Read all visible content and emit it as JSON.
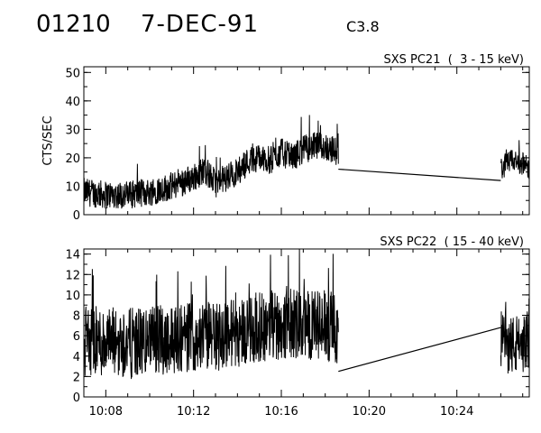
{
  "header": {
    "flare_id": "01210",
    "date": "7-DEC-91",
    "goes_class": "C3.8"
  },
  "chart_data": [
    {
      "type": "line",
      "title": "SXS PC21  (  3 - 15 keV)",
      "xlabel": "",
      "ylabel": "CTS/SEC",
      "xlim": [
        "10:07.0",
        "10:27.3"
      ],
      "ylim": [
        0,
        52
      ],
      "x_ticks": [
        "10:08",
        "10:12",
        "10:16",
        "10:20",
        "10:24"
      ],
      "y_ticks": [
        0,
        10,
        20,
        30,
        40,
        50
      ],
      "series": [
        {
          "data_segments": [
            {
              "x_start_min": 7.0,
              "x_end_min": 18.6,
              "envelope": [
                [
                  7.0,
                  8
                ],
                [
                  8.0,
                  7
                ],
                [
                  9.0,
                  7
                ],
                [
                  10.0,
                  8
                ],
                [
                  11.0,
                  10
                ],
                [
                  12.0,
                  13
                ],
                [
                  12.5,
                  16
                ],
                [
                  13.0,
                  11
                ],
                [
                  13.5,
                  13
                ],
                [
                  14.0,
                  15
                ],
                [
                  14.5,
                  19
                ],
                [
                  15.0,
                  20
                ],
                [
                  15.5,
                  19
                ],
                [
                  16.0,
                  22
                ],
                [
                  16.5,
                  20
                ],
                [
                  17.0,
                  23
                ],
                [
                  17.5,
                  24
                ],
                [
                  18.0,
                  24
                ],
                [
                  18.6,
                  22
                ]
              ],
              "noise_amplitude": 5
            },
            {
              "x_start_min": 26.0,
              "x_end_min": 27.3,
              "envelope": [
                [
                  26.0,
                  16
                ],
                [
                  26.5,
                  19
                ],
                [
                  27.0,
                  18
                ],
                [
                  27.3,
                  16
                ]
              ],
              "noise_amplitude": 4
            }
          ],
          "gap_line": [
            [
              18.6,
              16
            ],
            [
              26.0,
              12
            ]
          ]
        }
      ]
    },
    {
      "type": "line",
      "title": "SXS PC22  ( 15 - 40 keV)",
      "xlabel": "",
      "ylabel": "",
      "xlim": [
        "10:07.0",
        "10:27.3"
      ],
      "ylim": [
        0,
        14.5
      ],
      "x_ticks": [
        "10:08",
        "10:12",
        "10:16",
        "10:20",
        "10:24"
      ],
      "y_ticks": [
        0,
        2,
        4,
        6,
        8,
        10,
        12,
        14
      ],
      "series": [
        {
          "data_segments": [
            {
              "x_start_min": 7.0,
              "x_end_min": 18.6,
              "envelope": [
                [
                  7.0,
                  5.5
                ],
                [
                  9.0,
                  5.2
                ],
                [
                  11.0,
                  5.8
                ],
                [
                  13.0,
                  6.0
                ],
                [
                  15.0,
                  6.8
                ],
                [
                  16.5,
                  7.2
                ],
                [
                  18.0,
                  6.8
                ],
                [
                  18.6,
                  6.5
                ]
              ],
              "noise_amplitude": 3.5
            },
            {
              "x_start_min": 26.0,
              "x_end_min": 27.3,
              "envelope": [
                [
                  26.0,
                  5.5
                ],
                [
                  26.6,
                  5.0
                ],
                [
                  27.3,
                  5.5
                ]
              ],
              "noise_amplitude": 3
            }
          ],
          "gap_line": [
            [
              18.6,
              2.5
            ],
            [
              26.0,
              6.8
            ]
          ]
        }
      ]
    }
  ]
}
